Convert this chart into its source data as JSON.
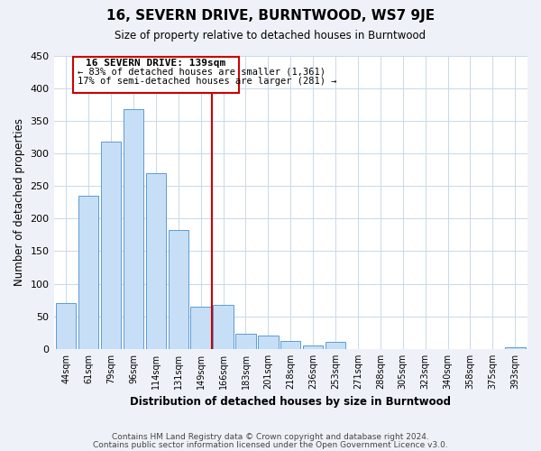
{
  "title": "16, SEVERN DRIVE, BURNTWOOD, WS7 9JE",
  "subtitle": "Size of property relative to detached houses in Burntwood",
  "xlabel": "Distribution of detached houses by size in Burntwood",
  "ylabel": "Number of detached properties",
  "footer_lines": [
    "Contains HM Land Registry data © Crown copyright and database right 2024.",
    "Contains public sector information licensed under the Open Government Licence v3.0."
  ],
  "bar_labels": [
    "44sqm",
    "61sqm",
    "79sqm",
    "96sqm",
    "114sqm",
    "131sqm",
    "149sqm",
    "166sqm",
    "183sqm",
    "201sqm",
    "218sqm",
    "236sqm",
    "253sqm",
    "271sqm",
    "288sqm",
    "305sqm",
    "323sqm",
    "340sqm",
    "358sqm",
    "375sqm",
    "393sqm"
  ],
  "bar_values": [
    71,
    235,
    318,
    368,
    270,
    183,
    65,
    68,
    23,
    20,
    12,
    5,
    11,
    0,
    0,
    0,
    0,
    0,
    0,
    0,
    2
  ],
  "bar_color": "#c6dff7",
  "bar_edge_color": "#5b9bd5",
  "vline_color": "#cc0000",
  "vline_x": 6.5,
  "annotation_title": "16 SEVERN DRIVE: 139sqm",
  "annotation_line1": "← 83% of detached houses are smaller (1,361)",
  "annotation_line2": "17% of semi-detached houses are larger (281) →",
  "box_color": "#cc0000",
  "ylim": [
    0,
    450
  ],
  "yticks": [
    0,
    50,
    100,
    150,
    200,
    250,
    300,
    350,
    400,
    450
  ],
  "bg_color": "#eef2f8",
  "plot_bg_color": "#ffffff",
  "grid_color": "#c8d8ea"
}
